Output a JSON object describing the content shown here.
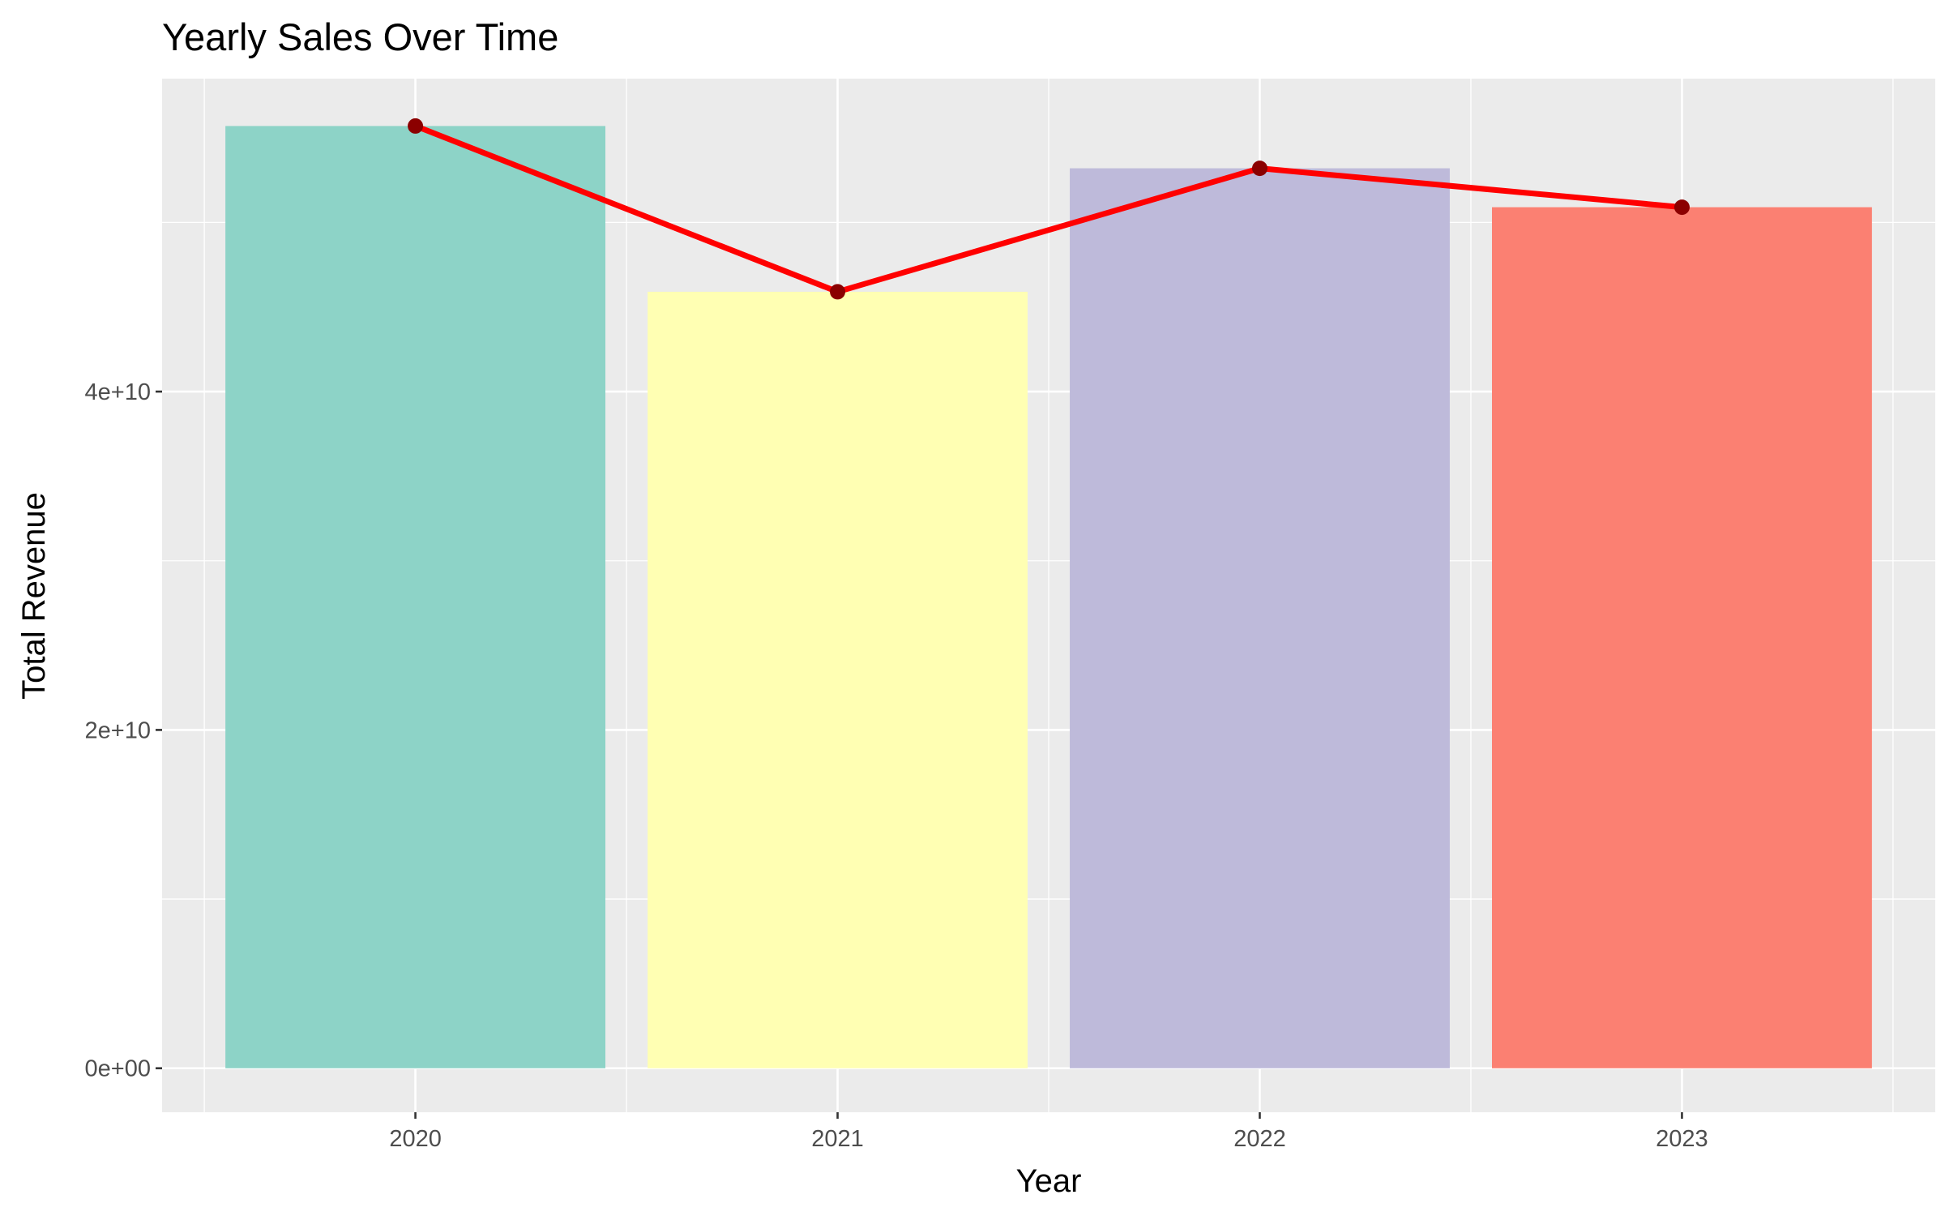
{
  "chart_data": {
    "type": "bar",
    "title": "Yearly Sales Over Time",
    "xlabel": "Year",
    "ylabel": "Total Revenue",
    "categories": [
      "2020",
      "2021",
      "2022",
      "2023"
    ],
    "values": [
      55700000000,
      45900000000,
      53200000000,
      50900000000
    ],
    "bar_colors": [
      "#8dd3c7",
      "#ffffb3",
      "#bebada",
      "#fb8072"
    ],
    "overlay_line": {
      "type": "line",
      "values": [
        55700000000,
        45900000000,
        53200000000,
        50900000000
      ],
      "color": "#ff0000",
      "point_color": "#8b0000"
    },
    "ylim": [
      -2600000000,
      58500000000
    ],
    "y_ticks": [
      0,
      20000000000,
      40000000000
    ],
    "y_tick_labels": [
      "0e+00",
      "2e+10",
      "4e+10"
    ],
    "background": "#ebebeb",
    "grid": true,
    "legend": "none"
  }
}
